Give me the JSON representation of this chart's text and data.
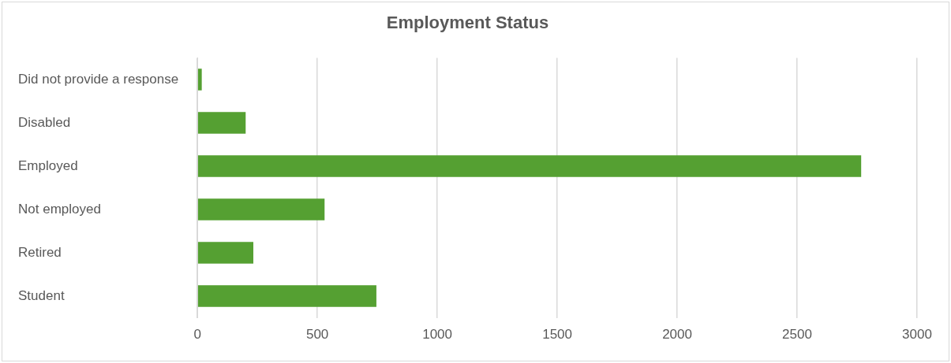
{
  "chart_data": {
    "type": "bar",
    "orientation": "horizontal",
    "title": "Employment Status",
    "categories": [
      "Did not provide a response",
      "Disabled",
      "Employed",
      "Not employed",
      "Retired",
      "Student"
    ],
    "values": [
      18,
      201,
      2767,
      530,
      233,
      746
    ],
    "color": "#55a032",
    "xlim": [
      0,
      3000
    ],
    "xticks": [
      0,
      500,
      1000,
      1500,
      2000,
      2500,
      3000
    ],
    "grid": "x"
  }
}
